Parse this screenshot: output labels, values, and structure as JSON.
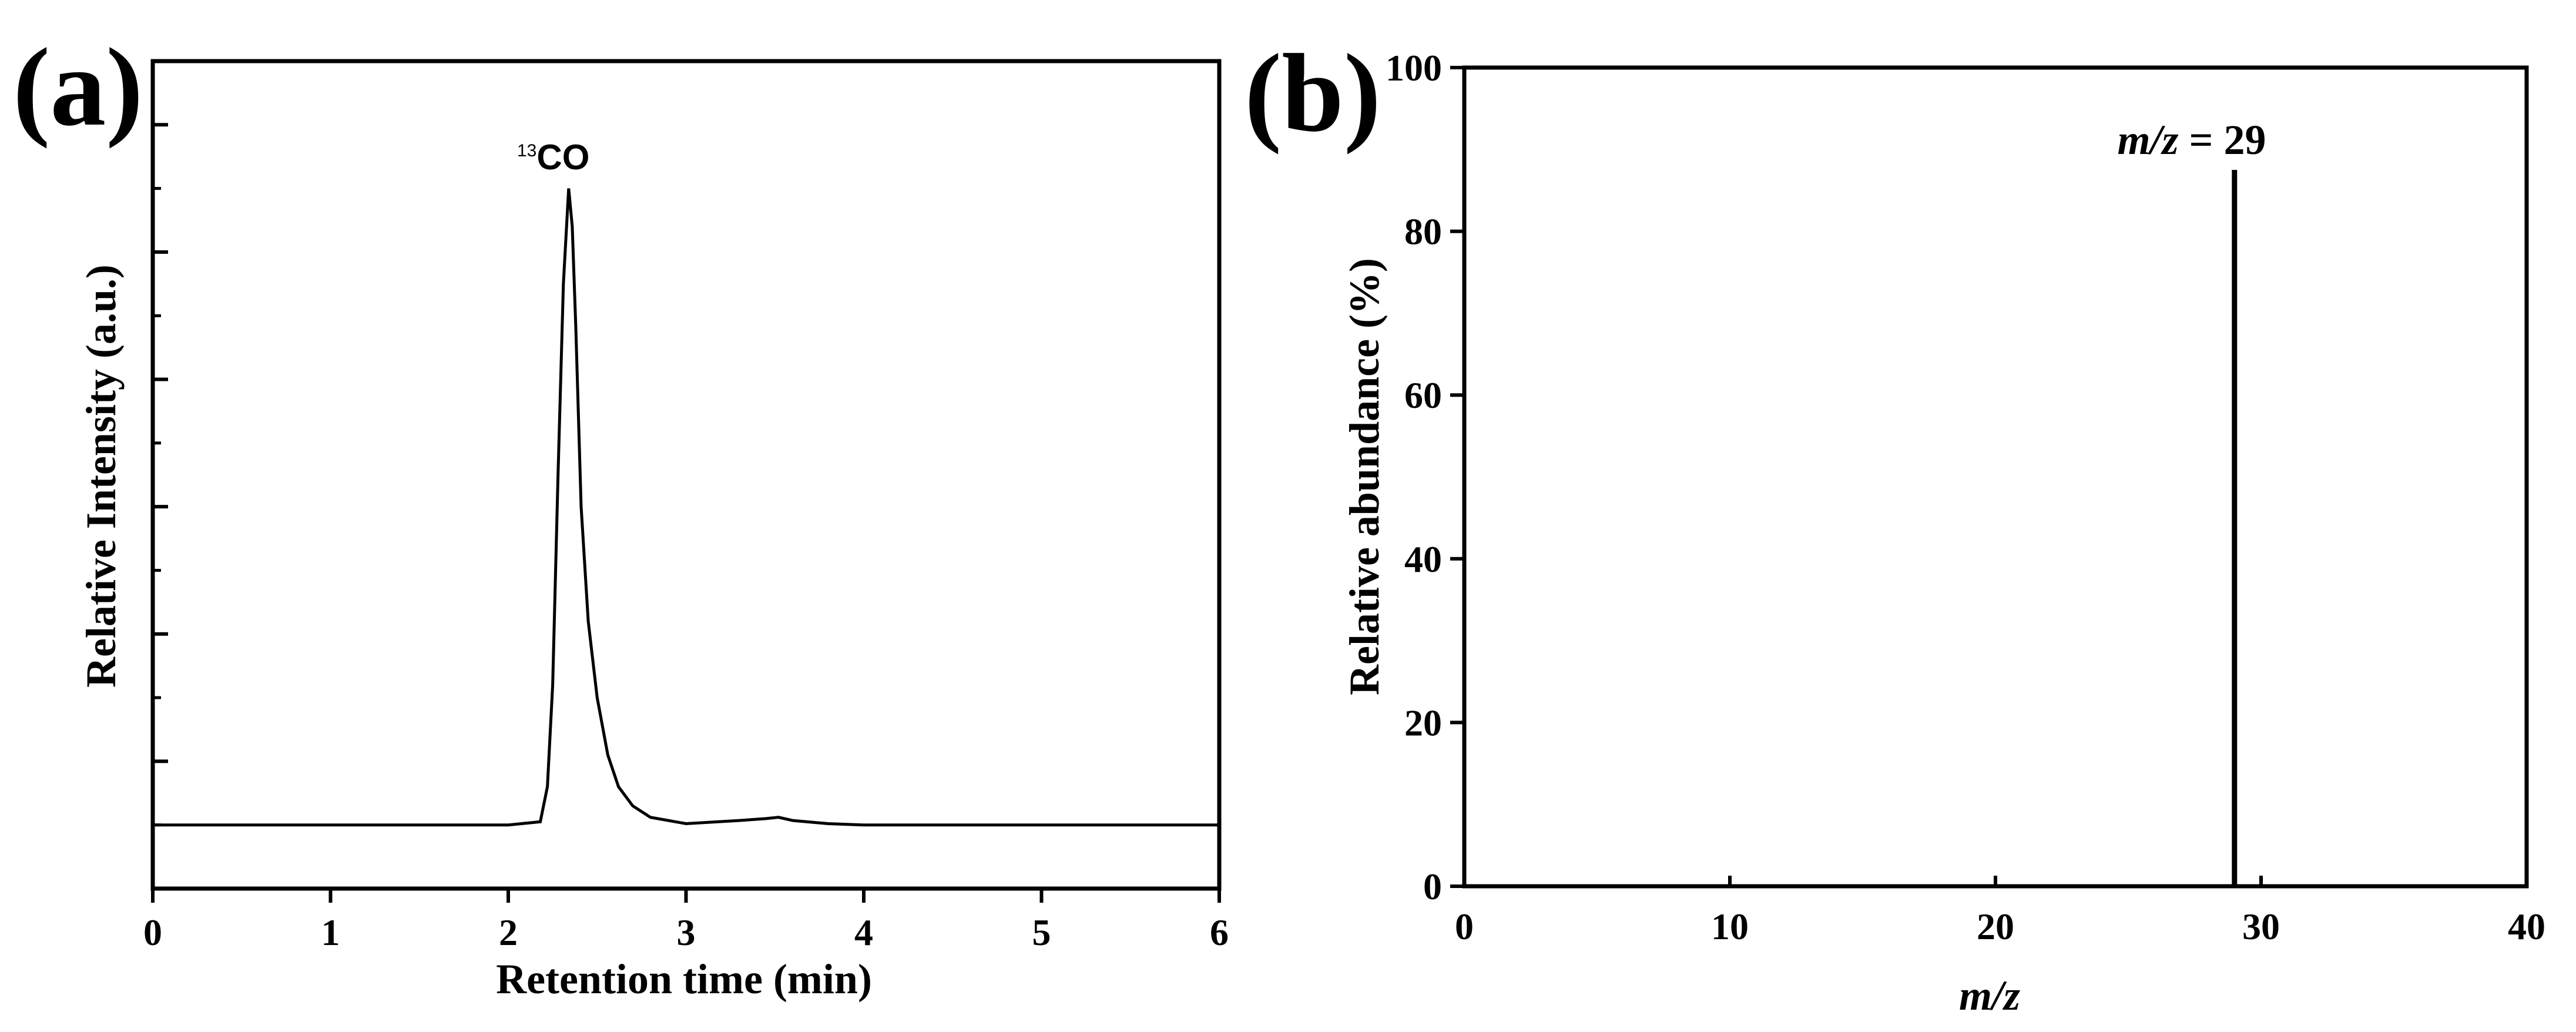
{
  "panel_a": {
    "label": "(a)",
    "xlabel": "Retention time (min)",
    "ylabel": "Relative Intensity (a.u.)",
    "peak_label_sup": "13",
    "peak_label": "CO"
  },
  "panel_b": {
    "label": "(b)",
    "xlabel": "m/z",
    "ylabel": "Relative abundance (%)",
    "annotation_italic": "m/z",
    "annotation_rest": " = 29"
  },
  "chart_data": [
    {
      "type": "line",
      "panel": "(a)",
      "xlabel": "Retention time (min)",
      "ylabel": "Relative Intensity (a.u.)",
      "xlim": [
        0,
        6
      ],
      "ylim": [
        0,
        13
      ],
      "xticks": [
        0,
        1,
        2,
        3,
        4,
        5,
        6
      ],
      "yticks_major": [
        2,
        4,
        6,
        8,
        10,
        12
      ],
      "yticks_minor": [
        1,
        3,
        5,
        7,
        9,
        11,
        13
      ],
      "y_tick_labels_shown": false,
      "grid": false,
      "series": [
        {
          "x": [
            0,
            1.0,
            2.0,
            2.18,
            2.22,
            2.25,
            2.28,
            2.31,
            2.34,
            2.36,
            2.38,
            2.41,
            2.45,
            2.5,
            2.56,
            2.62,
            2.7,
            2.8,
            3.0,
            3.3,
            3.45,
            3.52,
            3.6,
            3.8,
            4.0,
            5.0,
            6.0
          ],
          "y": [
            1.0,
            1.0,
            1.0,
            1.05,
            1.6,
            3.2,
            6.5,
            9.5,
            11.0,
            10.4,
            8.8,
            6.0,
            4.2,
            3.0,
            2.1,
            1.6,
            1.3,
            1.12,
            1.02,
            1.07,
            1.1,
            1.12,
            1.07,
            1.02,
            1.0,
            1.0,
            1.0
          ]
        }
      ],
      "annotations": [
        {
          "text": "13CO",
          "x": 2.35,
          "y": 11.0
        }
      ]
    },
    {
      "type": "bar",
      "panel": "(b)",
      "xlabel": "m/z",
      "ylabel": "Relative abundance (%)",
      "xlim": [
        0,
        40
      ],
      "ylim": [
        0,
        100
      ],
      "xticks": [
        0,
        10,
        20,
        30,
        40
      ],
      "yticks": [
        0,
        20,
        40,
        60,
        80,
        100
      ],
      "grid": false,
      "series": [
        {
          "x": [
            29
          ],
          "y": [
            87.5
          ]
        }
      ],
      "annotations": [
        {
          "text": "m/z = 29",
          "x": 29,
          "y": 87.5
        }
      ]
    }
  ]
}
